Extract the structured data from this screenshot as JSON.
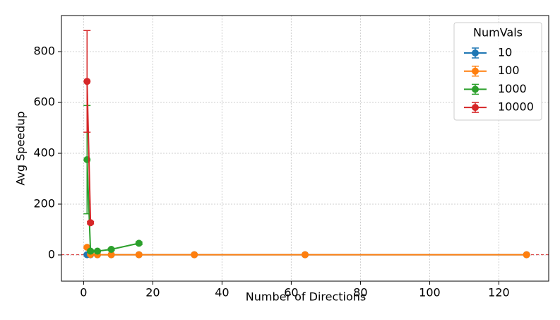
{
  "chart_data": {
    "type": "line",
    "xlabel": "Number of Directions",
    "ylabel": "Avg Speedup",
    "xlim": [
      -6.4,
      134.4
    ],
    "ylim": [
      -103,
      942
    ],
    "xticks": [
      0,
      20,
      40,
      60,
      80,
      100,
      120
    ],
    "yticks": [
      0,
      200,
      400,
      600,
      800
    ],
    "grid": true,
    "legend_title": "NumVals",
    "legend_position": "upper right",
    "hline": 1,
    "hline_color": "#d62728",
    "series": [
      {
        "name": "10",
        "color": "#1f77b4",
        "x": [
          1,
          2,
          4,
          8,
          16,
          32,
          64,
          128
        ],
        "values": [
          1,
          1,
          1,
          1,
          1,
          1,
          1,
          1
        ],
        "errors": [
          0.5,
          0.5,
          0.5,
          0.5,
          0.5,
          0.5,
          0.5,
          0.5
        ]
      },
      {
        "name": "100",
        "color": "#ff7f0e",
        "x": [
          1,
          2,
          4,
          8,
          16,
          32,
          64,
          128
        ],
        "values": [
          30,
          2,
          1,
          1,
          1,
          1,
          1,
          1
        ],
        "errors": [
          4,
          1,
          0.5,
          0.5,
          0.5,
          0.5,
          0.5,
          0.5
        ]
      },
      {
        "name": "1000",
        "color": "#2ca02c",
        "x": [
          1,
          2,
          4,
          8,
          16
        ],
        "values": [
          375,
          15,
          15,
          22,
          46
        ],
        "errors": [
          213,
          4,
          3,
          4,
          5
        ]
      },
      {
        "name": "10000",
        "color": "#d62728",
        "x": [
          1,
          2
        ],
        "values": [
          683,
          127
        ],
        "errors": [
          200,
          5
        ]
      }
    ]
  }
}
